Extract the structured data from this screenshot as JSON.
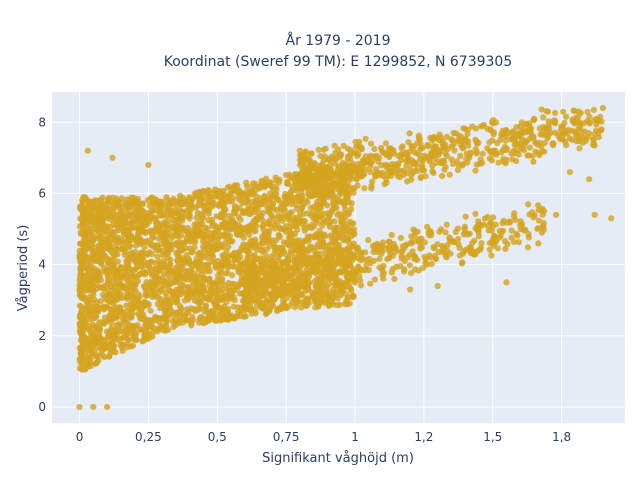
{
  "chart_data": {
    "type": "scatter",
    "title_line1": "År 1979 - 2019",
    "title_line2": "Koordinat (Sweref 99 TM): E 1299852, N 6739305",
    "xlabel": "Signifikant våghöjd (m)",
    "ylabel": "Vågperiod (s)",
    "xlim": [
      -0.1,
      1.98
    ],
    "ylim": [
      -0.45,
      8.85
    ],
    "x_ticks": [
      0,
      0.25,
      0.5,
      0.75,
      1,
      1.25,
      1.5,
      1.75
    ],
    "x_tick_labels": [
      "0",
      "0,25",
      "0,5",
      "0,75",
      "1",
      "1,2",
      "1,5",
      "1,8"
    ],
    "y_ticks": [
      0,
      2,
      4,
      6,
      8
    ],
    "y_tick_labels": [
      "0",
      "2",
      "4",
      "6",
      "8"
    ],
    "grid": true,
    "marker_color": "#d4a420",
    "plot_background": "#e5ecf6",
    "point_density_bands": [
      {
        "name": "dense-cloud",
        "x_range": [
          0,
          1.0
        ],
        "y_lower": [
          1.0,
          2.2,
          2.6,
          2.9
        ],
        "y_upper": [
          5.9,
          5.9,
          6.4,
          6.9
        ]
      },
      {
        "name": "upper-branch",
        "x_range": [
          0.8,
          1.9
        ],
        "y_center": [
          6.5,
          7.9
        ]
      },
      {
        "name": "lower-branch",
        "x_range": [
          0.6,
          1.7
        ],
        "y_center": [
          3.4,
          5.2
        ]
      }
    ],
    "sample_points": [
      {
        "x": 0.0,
        "y": 0.0
      },
      {
        "x": 0.05,
        "y": 0.0
      },
      {
        "x": 0.1,
        "y": 0.0
      },
      {
        "x": 0.03,
        "y": 7.2
      },
      {
        "x": 0.12,
        "y": 7.0
      },
      {
        "x": 0.02,
        "y": 1.05
      },
      {
        "x": 0.25,
        "y": 6.8
      },
      {
        "x": 1.9,
        "y": 8.4
      },
      {
        "x": 1.93,
        "y": 5.3
      },
      {
        "x": 1.78,
        "y": 6.6
      },
      {
        "x": 1.73,
        "y": 5.4
      },
      {
        "x": 1.55,
        "y": 3.5
      },
      {
        "x": 1.2,
        "y": 3.3
      },
      {
        "x": 1.3,
        "y": 3.4
      },
      {
        "x": 1.85,
        "y": 6.4
      },
      {
        "x": 1.81,
        "y": 8.15
      },
      {
        "x": 1.65,
        "y": 8.1
      },
      {
        "x": 1.1,
        "y": 3.7
      },
      {
        "x": 1.02,
        "y": 7.25
      },
      {
        "x": 0.8,
        "y": 7.2
      },
      {
        "x": 1.87,
        "y": 5.4
      },
      {
        "x": 1.6,
        "y": 5.1
      },
      {
        "x": 1.7,
        "y": 8.3
      }
    ]
  }
}
